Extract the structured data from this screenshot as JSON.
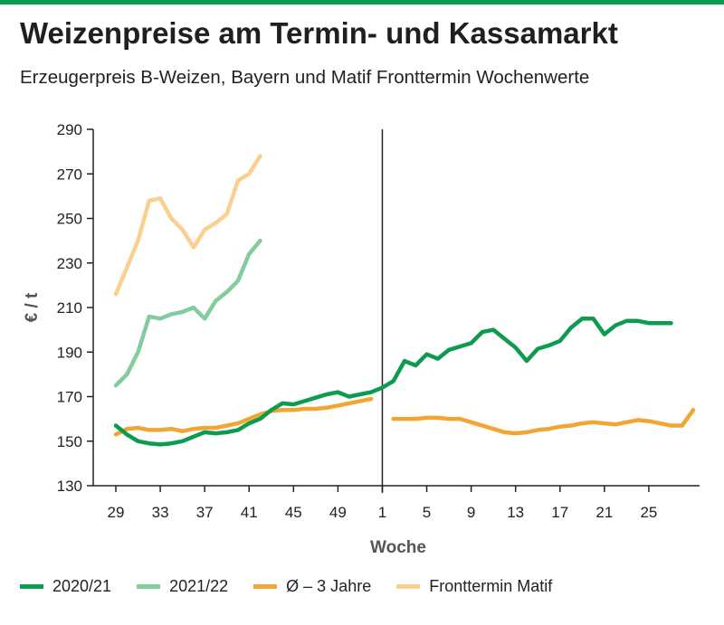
{
  "title": "Weizenpreise am Termin- und Kassamarkt",
  "subtitle": "Erzeugerpreis B-Weizen, Bayern und Matif Fronttermin Wochenwerte",
  "chart_data": {
    "type": "line",
    "title": "Weizenpreise am Termin- und Kassamarkt",
    "subtitle": "Erzeugerpreis B-Weizen, Bayern und Matif Fronttermin Wochenwerte",
    "xlabel": "Woche",
    "ylabel": "€ / t",
    "ylim": [
      130,
      290
    ],
    "yticks": [
      130,
      150,
      170,
      190,
      210,
      230,
      250,
      270,
      290
    ],
    "x_positions": [
      29,
      30,
      31,
      32,
      33,
      34,
      35,
      36,
      37,
      38,
      39,
      40,
      41,
      42,
      43,
      44,
      45,
      46,
      47,
      48,
      49,
      50,
      51,
      52,
      53,
      54,
      55,
      56,
      57,
      58,
      59,
      60,
      61,
      62,
      63,
      64,
      65,
      66,
      67,
      68,
      69,
      70,
      71,
      72,
      73,
      74,
      75,
      76,
      77,
      78,
      79,
      80,
      81
    ],
    "x_tick_positions": [
      29,
      33,
      37,
      41,
      45,
      49,
      53,
      57,
      61,
      65,
      69,
      73,
      77
    ],
    "x_tick_labels": [
      "29",
      "33",
      "37",
      "41",
      "45",
      "49",
      "1",
      "5",
      "9",
      "13",
      "17",
      "21",
      "25"
    ],
    "year_divider_at": 53,
    "grid": false,
    "legend_position": "bottom",
    "series": [
      {
        "name": "2020/21",
        "color": "#0d9c4f",
        "x": [
          29,
          30,
          31,
          32,
          33,
          34,
          35,
          36,
          37,
          38,
          39,
          40,
          41,
          42,
          43,
          44,
          45,
          46,
          47,
          48,
          49,
          50,
          51,
          52,
          53,
          54,
          55,
          56,
          57,
          58,
          59,
          60,
          61,
          62,
          63,
          64,
          65,
          66,
          67,
          68,
          69,
          70,
          71,
          72,
          73,
          74,
          75,
          76,
          77,
          78,
          79
        ],
        "values": [
          157,
          153,
          150,
          149,
          148.5,
          149,
          150,
          152,
          154,
          153.5,
          154,
          155,
          158,
          160,
          164,
          167,
          166.5,
          168,
          169.5,
          171,
          172,
          170,
          171,
          172,
          174,
          177,
          186,
          184,
          189,
          187,
          191,
          192.5,
          194,
          199,
          200,
          196,
          192,
          186,
          191.5,
          193,
          195,
          201,
          205,
          205,
          198,
          202,
          204,
          204,
          203,
          203,
          203
        ]
      },
      {
        "name": "2021/22",
        "color": "#82cc9e",
        "x": [
          29,
          30,
          31,
          32,
          33,
          34,
          35,
          36,
          37,
          38,
          39,
          40,
          41,
          42
        ],
        "values": [
          175,
          180,
          190,
          206,
          205,
          207,
          208,
          210,
          205,
          213,
          217,
          222,
          234,
          240
        ]
      },
      {
        "name": "Ø – 3 Jahre",
        "color": "#f2a533",
        "x": [
          29,
          30,
          31,
          32,
          33,
          34,
          35,
          36,
          37,
          38,
          39,
          40,
          41,
          42,
          43,
          44,
          45,
          46,
          47,
          48,
          49,
          50,
          51,
          52,
          53,
          54,
          55,
          56,
          57,
          58,
          59,
          60,
          61,
          62,
          63,
          64,
          65,
          66,
          67,
          68,
          69,
          70,
          71,
          72,
          73,
          74,
          75,
          76,
          77,
          78,
          79,
          80,
          81
        ],
        "values": [
          153,
          155.5,
          156,
          155,
          155,
          155.5,
          154.5,
          155.5,
          156,
          156,
          157,
          158,
          160,
          162,
          163.5,
          164,
          164,
          164.5,
          164.5,
          165,
          166,
          167,
          168,
          169,
          null,
          160,
          160,
          160,
          160.5,
          160.5,
          160,
          160,
          158.5,
          157,
          155.5,
          154,
          153.5,
          154,
          155,
          155.5,
          156.5,
          157,
          158,
          158.5,
          158,
          157.5,
          158.5,
          159.5,
          159,
          158,
          157,
          157,
          164
        ]
      },
      {
        "name": "Fronttermin Matif",
        "color": "#fbcf8f",
        "x": [
          29,
          30,
          31,
          32,
          33,
          34,
          35,
          36,
          37,
          38,
          39,
          40,
          41,
          42
        ],
        "values": [
          216,
          228,
          240,
          258,
          259,
          250,
          245,
          237,
          245,
          248,
          252,
          267,
          270,
          278
        ]
      }
    ]
  }
}
